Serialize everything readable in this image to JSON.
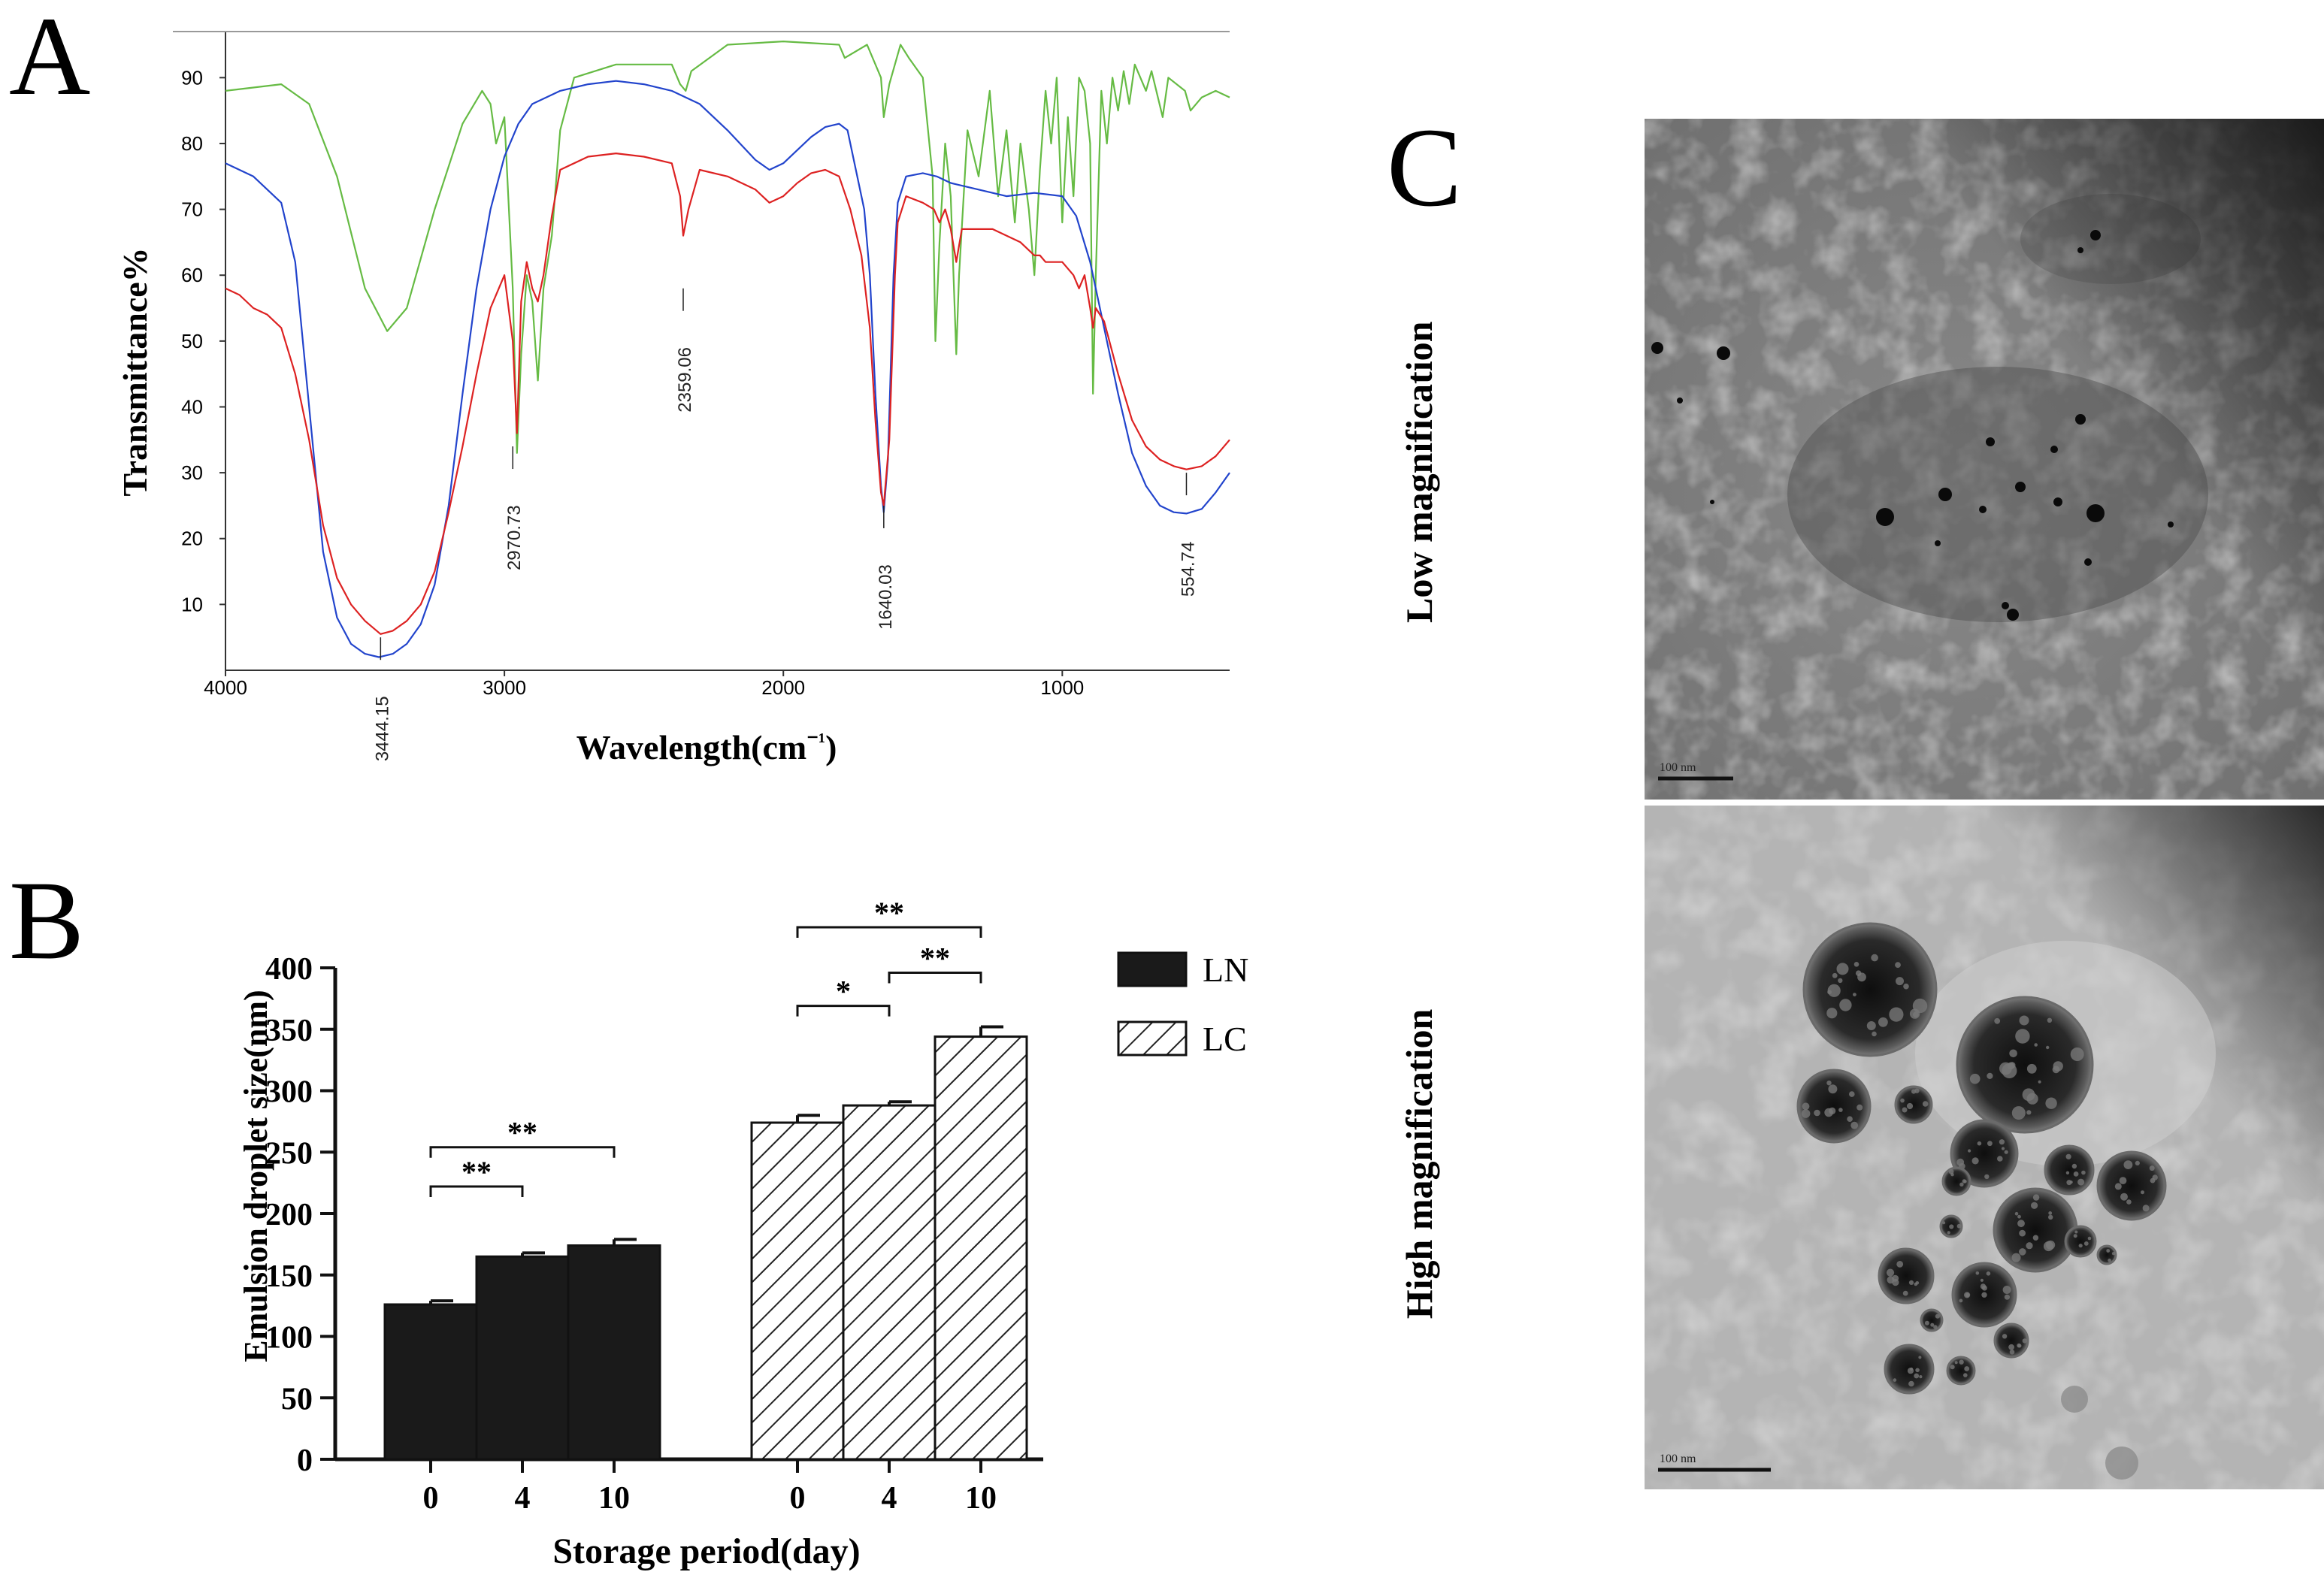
{
  "panels": {
    "a": "A",
    "b": "B",
    "c": "C"
  },
  "tem": {
    "low_label": "Low magnification",
    "high_label": "High magnification",
    "scale_low": "100 nm",
    "scale_high": "100 nm"
  },
  "colors": {
    "green": "#66bb44",
    "blue": "#2244cc",
    "red": "#dd2222",
    "bar_solid": "#1a1a1a"
  },
  "chart_data": [
    {
      "type": "line",
      "title": "",
      "xlabel": "Wavelength(cm⁻¹)",
      "ylabel": "Transmittance%",
      "xlim": [
        4000,
        400
      ],
      "ylim": [
        0,
        97
      ],
      "x_ticks": [
        4000,
        3000,
        2000,
        1000
      ],
      "y_ticks": [
        10,
        20,
        30,
        40,
        50,
        60,
        70,
        80,
        90
      ],
      "grid": false,
      "peak_labels": [
        {
          "label": "3444.15",
          "x": 3444,
          "y": 5
        },
        {
          "label": "2970.73",
          "x": 2970,
          "y": 34
        },
        {
          "label": "2359.06",
          "x": 2359,
          "y": 58
        },
        {
          "label": "1640.03",
          "x": 1640,
          "y": 25
        },
        {
          "label": "554.74",
          "x": 555,
          "y": 30
        }
      ],
      "series": [
        {
          "color": "green",
          "points": [
            [
              4000,
              88
            ],
            [
              3900,
              88.5
            ],
            [
              3800,
              89
            ],
            [
              3700,
              86
            ],
            [
              3600,
              75
            ],
            [
              3500,
              58
            ],
            [
              3420,
              51.5
            ],
            [
              3350,
              55
            ],
            [
              3250,
              70
            ],
            [
              3150,
              83
            ],
            [
              3080,
              88
            ],
            [
              3050,
              86
            ],
            [
              3030,
              80
            ],
            [
              3000,
              84
            ],
            [
              2970,
              58
            ],
            [
              2955,
              33
            ],
            [
              2940,
              48
            ],
            [
              2920,
              60
            ],
            [
              2900,
              56
            ],
            [
              2880,
              44
            ],
            [
              2860,
              58
            ],
            [
              2830,
              66
            ],
            [
              2800,
              82
            ],
            [
              2750,
              90
            ],
            [
              2600,
              92
            ],
            [
              2400,
              92
            ],
            [
              2370,
              89
            ],
            [
              2350,
              88
            ],
            [
              2330,
              91
            ],
            [
              2200,
              95
            ],
            [
              2000,
              95.5
            ],
            [
              1800,
              95
            ],
            [
              1780,
              93
            ],
            [
              1700,
              95
            ],
            [
              1650,
              90
            ],
            [
              1640,
              84
            ],
            [
              1620,
              89
            ],
            [
              1580,
              95
            ],
            [
              1550,
              93
            ],
            [
              1500,
              90
            ],
            [
              1465,
              75
            ],
            [
              1455,
              50
            ],
            [
              1440,
              65
            ],
            [
              1420,
              80
            ],
            [
              1400,
              72
            ],
            [
              1380,
              48
            ],
            [
              1370,
              60
            ],
            [
              1340,
              82
            ],
            [
              1300,
              75
            ],
            [
              1260,
              88
            ],
            [
              1230,
              72
            ],
            [
              1200,
              82
            ],
            [
              1170,
              68
            ],
            [
              1150,
              80
            ],
            [
              1120,
              70
            ],
            [
              1100,
              60
            ],
            [
              1080,
              76
            ],
            [
              1060,
              88
            ],
            [
              1040,
              80
            ],
            [
              1020,
              90
            ],
            [
              1000,
              68
            ],
            [
              980,
              84
            ],
            [
              960,
              72
            ],
            [
              940,
              90
            ],
            [
              920,
              88
            ],
            [
              900,
              80
            ],
            [
              890,
              42
            ],
            [
              880,
              60
            ],
            [
              860,
              88
            ],
            [
              840,
              80
            ],
            [
              820,
              90
            ],
            [
              800,
              85
            ],
            [
              780,
              91
            ],
            [
              760,
              86
            ],
            [
              740,
              92
            ],
            [
              700,
              88
            ],
            [
              680,
              91
            ],
            [
              640,
              84
            ],
            [
              620,
              90
            ],
            [
              560,
              88
            ],
            [
              540,
              85
            ],
            [
              500,
              87
            ],
            [
              450,
              88
            ],
            [
              400,
              87
            ]
          ]
        },
        {
          "color": "blue",
          "points": [
            [
              4000,
              77
            ],
            [
              3900,
              75
            ],
            [
              3800,
              71
            ],
            [
              3750,
              62
            ],
            [
              3700,
              40
            ],
            [
              3650,
              18
            ],
            [
              3600,
              8
            ],
            [
              3550,
              4
            ],
            [
              3500,
              2.5
            ],
            [
              3450,
              2
            ],
            [
              3400,
              2.5
            ],
            [
              3350,
              4
            ],
            [
              3300,
              7
            ],
            [
              3250,
              13
            ],
            [
              3200,
              25
            ],
            [
              3150,
              42
            ],
            [
              3100,
              58
            ],
            [
              3050,
              70
            ],
            [
              3000,
              78
            ],
            [
              2950,
              83
            ],
            [
              2900,
              86
            ],
            [
              2800,
              88
            ],
            [
              2700,
              89
            ],
            [
              2600,
              89.5
            ],
            [
              2500,
              89
            ],
            [
              2400,
              88
            ],
            [
              2300,
              86
            ],
            [
              2200,
              82
            ],
            [
              2100,
              77.5
            ],
            [
              2050,
              76
            ],
            [
              2000,
              77
            ],
            [
              1950,
              79
            ],
            [
              1900,
              81
            ],
            [
              1850,
              82.5
            ],
            [
              1800,
              83
            ],
            [
              1770,
              82
            ],
            [
              1740,
              76
            ],
            [
              1710,
              70
            ],
            [
              1690,
              60
            ],
            [
              1670,
              42
            ],
            [
              1650,
              28
            ],
            [
              1640,
              24
            ],
            [
              1625,
              32
            ],
            [
              1605,
              60
            ],
            [
              1590,
              71
            ],
            [
              1560,
              75
            ],
            [
              1500,
              75.5
            ],
            [
              1450,
              75
            ],
            [
              1400,
              74
            ],
            [
              1300,
              73
            ],
            [
              1200,
              72
            ],
            [
              1100,
              72.5
            ],
            [
              1000,
              72
            ],
            [
              950,
              69
            ],
            [
              900,
              62
            ],
            [
              850,
              52
            ],
            [
              800,
              42
            ],
            [
              750,
              33
            ],
            [
              700,
              28
            ],
            [
              650,
              25
            ],
            [
              600,
              24
            ],
            [
              555,
              23.8
            ],
            [
              500,
              24.5
            ],
            [
              450,
              27
            ],
            [
              400,
              30
            ]
          ]
        },
        {
          "color": "red",
          "points": [
            [
              4000,
              58
            ],
            [
              3950,
              57
            ],
            [
              3900,
              55
            ],
            [
              3850,
              54
            ],
            [
              3800,
              52
            ],
            [
              3750,
              45
            ],
            [
              3700,
              35
            ],
            [
              3650,
              22
            ],
            [
              3600,
              14
            ],
            [
              3550,
              10
            ],
            [
              3500,
              7.5
            ],
            [
              3444,
              5.5
            ],
            [
              3400,
              6
            ],
            [
              3350,
              7.5
            ],
            [
              3300,
              10
            ],
            [
              3250,
              15
            ],
            [
              3200,
              24
            ],
            [
              3150,
              34
            ],
            [
              3100,
              45
            ],
            [
              3050,
              55
            ],
            [
              3000,
              60
            ],
            [
              2970,
              50
            ],
            [
              2955,
              36
            ],
            [
              2940,
              56
            ],
            [
              2920,
              62
            ],
            [
              2900,
              58
            ],
            [
              2880,
              56
            ],
            [
              2860,
              60
            ],
            [
              2830,
              69
            ],
            [
              2800,
              76
            ],
            [
              2700,
              78
            ],
            [
              2600,
              78.5
            ],
            [
              2500,
              78
            ],
            [
              2400,
              77
            ],
            [
              2370,
              72
            ],
            [
              2359,
              66
            ],
            [
              2340,
              70
            ],
            [
              2300,
              76
            ],
            [
              2200,
              75
            ],
            [
              2100,
              73
            ],
            [
              2050,
              71
            ],
            [
              2000,
              72
            ],
            [
              1950,
              74
            ],
            [
              1900,
              75.5
            ],
            [
              1850,
              76
            ],
            [
              1800,
              75
            ],
            [
              1760,
              70
            ],
            [
              1720,
              63
            ],
            [
              1690,
              52
            ],
            [
              1670,
              38
            ],
            [
              1650,
              27
            ],
            [
              1640,
              25
            ],
            [
              1620,
              35
            ],
            [
              1600,
              60
            ],
            [
              1590,
              68
            ],
            [
              1560,
              72
            ],
            [
              1500,
              71
            ],
            [
              1460,
              70
            ],
            [
              1440,
              68
            ],
            [
              1420,
              70
            ],
            [
              1400,
              67
            ],
            [
              1380,
              62
            ],
            [
              1360,
              67
            ],
            [
              1300,
              67
            ],
            [
              1250,
              67
            ],
            [
              1200,
              66
            ],
            [
              1150,
              65
            ],
            [
              1100,
              63
            ],
            [
              1080,
              63
            ],
            [
              1060,
              62
            ],
            [
              1000,
              62
            ],
            [
              960,
              60
            ],
            [
              940,
              58
            ],
            [
              920,
              60
            ],
            [
              900,
              55
            ],
            [
              890,
              52
            ],
            [
              880,
              55
            ],
            [
              850,
              53
            ],
            [
              800,
              45
            ],
            [
              750,
              38
            ],
            [
              700,
              34
            ],
            [
              650,
              32
            ],
            [
              600,
              31
            ],
            [
              555,
              30.5
            ],
            [
              500,
              31
            ],
            [
              450,
              32.5
            ],
            [
              400,
              35
            ]
          ]
        }
      ]
    },
    {
      "type": "bar",
      "title": "",
      "xlabel": "Storage period(day)",
      "ylabel": "Emulsion droplet size(nm)",
      "ylim": [
        0,
        400
      ],
      "y_ticks": [
        0,
        50,
        100,
        150,
        200,
        250,
        300,
        350,
        400
      ],
      "categories": [
        "0",
        "4",
        "10"
      ],
      "grid": false,
      "legend_position": "top-right",
      "series": [
        {
          "name": "LN",
          "values": [
            126,
            165,
            174
          ],
          "errors": [
            3,
            3,
            5
          ],
          "fill": "solid"
        },
        {
          "name": "LC",
          "values": [
            274,
            288,
            344
          ],
          "errors": [
            6,
            3,
            8
          ],
          "fill": "hatched"
        }
      ],
      "significance": [
        {
          "series": "LN",
          "from": 0,
          "to": 1,
          "label": "**",
          "y": 222
        },
        {
          "series": "LN",
          "from": 0,
          "to": 2,
          "label": "**",
          "y": 254
        },
        {
          "series": "LC",
          "from": 0,
          "to": 1,
          "label": "*",
          "y": 369
        },
        {
          "series": "LC",
          "from": 1,
          "to": 2,
          "label": "**",
          "y": 396
        },
        {
          "series": "LC",
          "from": 0,
          "to": 2,
          "label": "**",
          "y": 433
        }
      ]
    }
  ]
}
